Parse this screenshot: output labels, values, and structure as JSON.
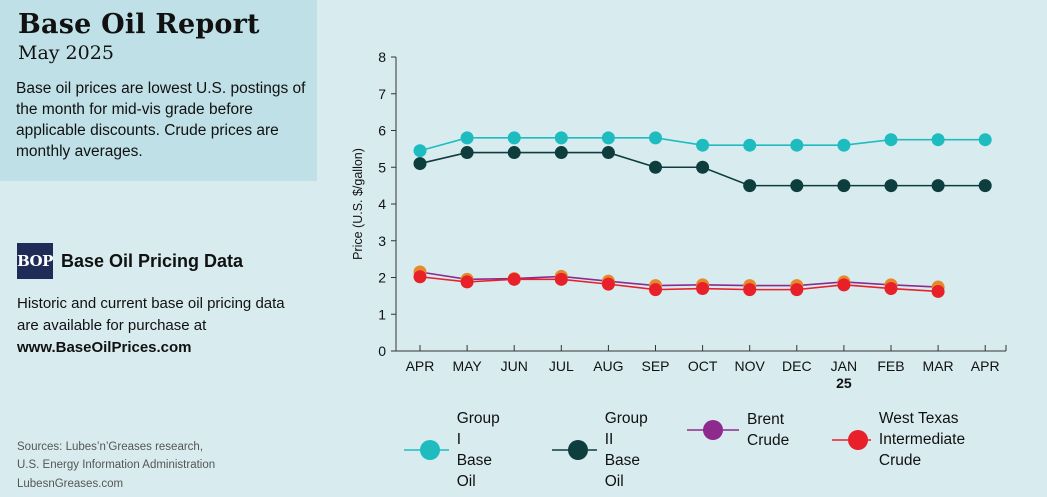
{
  "header": {
    "title": "Base Oil Report",
    "subtitle": "May 2025",
    "description": "Base oil prices are lowest U.S. postings of the month for mid-vis grade before applicable discounts. Crude prices are monthly averages."
  },
  "promo": {
    "logo_text": "BOP",
    "title": "Base Oil Pricing Data",
    "text": "Historic and current base oil pricing data are available for purchase at",
    "url": "www.BaseOilPrices.com"
  },
  "sources": {
    "line1": "Sources: Lubes’n’Greases research,",
    "line2": "U.S. Energy Information Administration"
  },
  "footer": {
    "site": "LubesnGreases.com"
  },
  "chart_data": {
    "type": "line",
    "categories": [
      "APR",
      "MAY",
      "JUN",
      "JUL",
      "AUG",
      "SEP",
      "OCT",
      "NOV",
      "DEC",
      "JAN",
      "FEB",
      "MAR",
      "APR"
    ],
    "category_sublabels": [
      "",
      "",
      "",
      "",
      "",
      "",
      "",
      "",
      "",
      "25",
      "",
      "",
      ""
    ],
    "ylabel": "Price (U.S. $/gallon)",
    "ylim": [
      0,
      8
    ],
    "yticks": [
      0,
      1,
      2,
      3,
      4,
      5,
      6,
      7,
      8
    ],
    "grid": false,
    "legend_position": "bottom",
    "series": [
      {
        "name": "Group I Base Oil",
        "color": "#1fbcbf",
        "values": [
          5.45,
          5.8,
          5.8,
          5.8,
          5.8,
          5.8,
          5.6,
          5.6,
          5.6,
          5.6,
          5.75,
          5.75,
          5.75
        ]
      },
      {
        "name": "Group II Base Oil",
        "color": "#0e3d3e",
        "values": [
          5.1,
          5.4,
          5.4,
          5.4,
          5.4,
          5.0,
          5.0,
          4.5,
          4.5,
          4.5,
          4.5,
          4.5,
          4.5
        ]
      },
      {
        "name": "Brent Crude",
        "color": "#8e2a8e",
        "marker_color": "#e58a2b",
        "values": [
          2.15,
          1.95,
          1.97,
          2.03,
          1.9,
          1.78,
          1.8,
          1.78,
          1.78,
          1.88,
          1.8,
          1.74,
          null
        ]
      },
      {
        "name": "West Texas Intermediate Crude",
        "color": "#e8202a",
        "values": [
          2.02,
          1.88,
          1.95,
          1.95,
          1.82,
          1.67,
          1.7,
          1.67,
          1.67,
          1.8,
          1.7,
          1.62,
          null
        ]
      }
    ],
    "legend": [
      {
        "line1": "Group I",
        "line2": "Base Oil",
        "color": "#1fbcbf",
        "line_color": "#1fbcbf"
      },
      {
        "line1": "Group II",
        "line2": "Base Oil",
        "color": "#0e3d3e",
        "line_color": "#0e3d3e"
      },
      {
        "line1": "Brent",
        "line2": "Crude",
        "color": "#8e2a8e",
        "line_color": "#8e2a8e"
      },
      {
        "line1": "West Texas",
        "line2": "Intermediate Crude",
        "color": "#e8202a",
        "line_color": "#e8202a"
      }
    ]
  }
}
